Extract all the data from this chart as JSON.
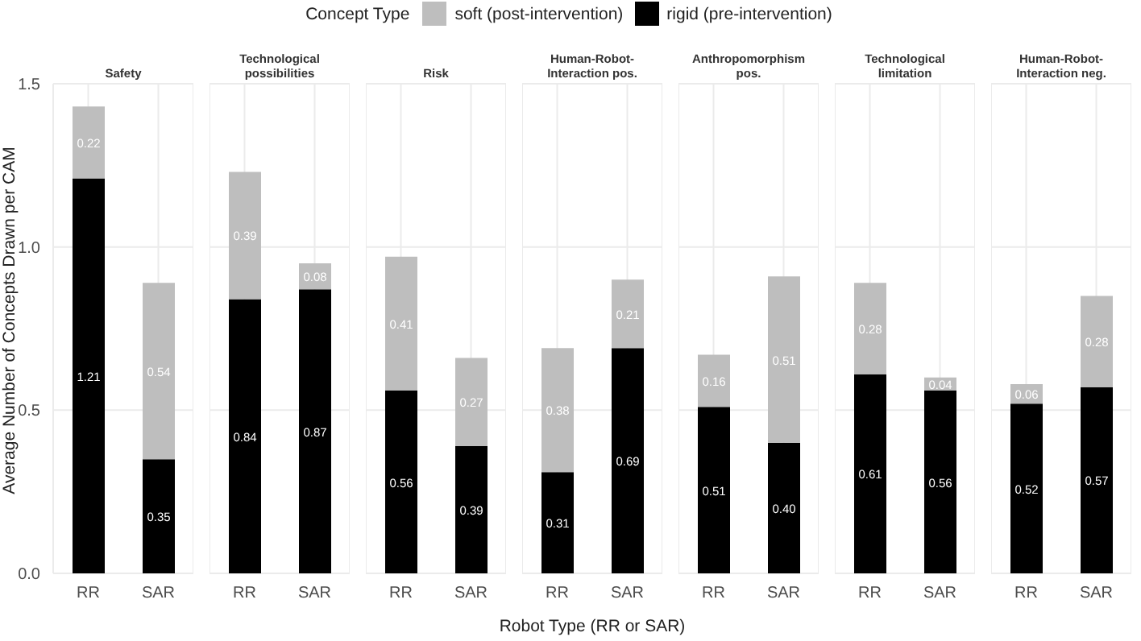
{
  "chart_data": [
    {
      "type": "bar",
      "title": "Safety",
      "ylabel": "Average Number of Concepts Drawn per CAM",
      "legend_title": "Concept Type",
      "legend": "top",
      "categories": [
        "RR",
        "SAR"
      ],
      "stacked": true,
      "ylim": [
        0,
        1.5
      ],
      "yticks": [
        {
          "value": 0,
          "label": "0.0"
        },
        {
          "value": 0.5,
          "label": "0.5"
        },
        {
          "value": 1,
          "label": "1.0"
        },
        {
          "value": 1.5,
          "label": "1.5"
        }
      ],
      "grid": true,
      "series": [
        {
          "name": "rigid (pre-intervention)",
          "color": "#000000",
          "values": [
            1.21,
            0.35
          ],
          "value_labels": [
            "1.21",
            "0.35"
          ]
        },
        {
          "name": "soft (post-intervention)",
          "color": "#bebebe",
          "values": [
            0.22,
            0.54
          ],
          "value_labels": [
            "0.22",
            "0.54"
          ]
        }
      ]
    },
    {
      "type": "bar",
      "title": "Technological possibilities",
      "categories": [
        "RR",
        "SAR"
      ],
      "stacked": true,
      "tick_labels": "x",
      "ylim": [
        0,
        1.5
      ],
      "yticks": [
        {
          "value": 0,
          "label": null
        },
        {
          "value": 0.5,
          "label": null
        },
        {
          "value": 1,
          "label": null
        },
        {
          "value": 1.5,
          "label": null
        }
      ],
      "grid": true,
      "series": [
        {
          "color": "#000000",
          "values": [
            0.84,
            0.87
          ],
          "value_labels": [
            "0.84",
            "0.87"
          ]
        },
        {
          "color": "#bebebe",
          "values": [
            0.39,
            0.08
          ],
          "value_labels": [
            "0.39",
            "0.08"
          ]
        }
      ]
    },
    {
      "type": "bar",
      "title": "Risk",
      "categories": [
        "RR",
        "SAR"
      ],
      "stacked": true,
      "tick_labels": "x",
      "ylim": [
        0,
        1.5
      ],
      "yticks": [
        {
          "value": 0,
          "label": null
        },
        {
          "value": 0.5,
          "label": null
        },
        {
          "value": 1,
          "label": null
        },
        {
          "value": 1.5,
          "label": null
        }
      ],
      "grid": true,
      "series": [
        {
          "color": "#000000",
          "values": [
            0.56,
            0.39
          ],
          "value_labels": [
            "0.56",
            "0.39"
          ]
        },
        {
          "color": "#bebebe",
          "values": [
            0.41,
            0.27
          ],
          "value_labels": [
            "0.41",
            "0.27"
          ]
        }
      ]
    },
    {
      "type": "bar",
      "title": "Human-Robot-Interaction pos.",
      "xlabel": "Robot Type (RR or SAR)",
      "categories": [
        "RR",
        "SAR"
      ],
      "stacked": true,
      "tick_labels": "x",
      "ylim": [
        0,
        1.5
      ],
      "yticks": [
        {
          "value": 0,
          "label": null
        },
        {
          "value": 0.5,
          "label": null
        },
        {
          "value": 1,
          "label": null
        },
        {
          "value": 1.5,
          "label": null
        }
      ],
      "grid": true,
      "series": [
        {
          "color": "#000000",
          "values": [
            0.31,
            0.69
          ],
          "value_labels": [
            "0.31",
            "0.69"
          ]
        },
        {
          "color": "#bebebe",
          "values": [
            0.38,
            0.21
          ],
          "value_labels": [
            "0.38",
            "0.21"
          ]
        }
      ]
    },
    {
      "type": "bar",
      "title": "Anthropomorphism pos.",
      "categories": [
        "RR",
        "SAR"
      ],
      "stacked": true,
      "tick_labels": "x",
      "ylim": [
        0,
        1.5
      ],
      "yticks": [
        {
          "value": 0,
          "label": null
        },
        {
          "value": 0.5,
          "label": null
        },
        {
          "value": 1,
          "label": null
        },
        {
          "value": 1.5,
          "label": null
        }
      ],
      "grid": true,
      "series": [
        {
          "color": "#000000",
          "values": [
            0.51,
            0.4
          ],
          "value_labels": [
            "0.51",
            "0.40"
          ]
        },
        {
          "color": "#bebebe",
          "values": [
            0.16,
            0.51
          ],
          "value_labels": [
            "0.16",
            "0.51"
          ]
        }
      ]
    },
    {
      "type": "bar",
      "title": "Technological limitation",
      "categories": [
        "RR",
        "SAR"
      ],
      "stacked": true,
      "tick_labels": "x",
      "ylim": [
        0,
        1.5
      ],
      "yticks": [
        {
          "value": 0,
          "label": null
        },
        {
          "value": 0.5,
          "label": null
        },
        {
          "value": 1,
          "label": null
        },
        {
          "value": 1.5,
          "label": null
        }
      ],
      "grid": true,
      "series": [
        {
          "color": "#000000",
          "values": [
            0.61,
            0.56
          ],
          "value_labels": [
            "0.61",
            "0.56"
          ]
        },
        {
          "color": "#bebebe",
          "values": [
            0.28,
            0.04
          ],
          "value_labels": [
            "0.28",
            "0.04"
          ]
        }
      ]
    },
    {
      "type": "bar",
      "title": "Human-Robot-Interaction neg.",
      "categories": [
        "RR",
        "SAR"
      ],
      "stacked": true,
      "tick_labels": "x",
      "ylim": [
        0,
        1.5
      ],
      "yticks": [
        {
          "value": 0,
          "label": null
        },
        {
          "value": 0.5,
          "label": null
        },
        {
          "value": 1,
          "label": null
        },
        {
          "value": 1.5,
          "label": null
        }
      ],
      "grid": true,
      "series": [
        {
          "color": "#000000",
          "values": [
            0.52,
            0.57
          ],
          "value_labels": [
            "0.52",
            "0.57"
          ]
        },
        {
          "color": "#bebebe",
          "values": [
            0.06,
            0.28
          ],
          "value_labels": [
            "0.06",
            "0.28"
          ]
        }
      ]
    }
  ]
}
